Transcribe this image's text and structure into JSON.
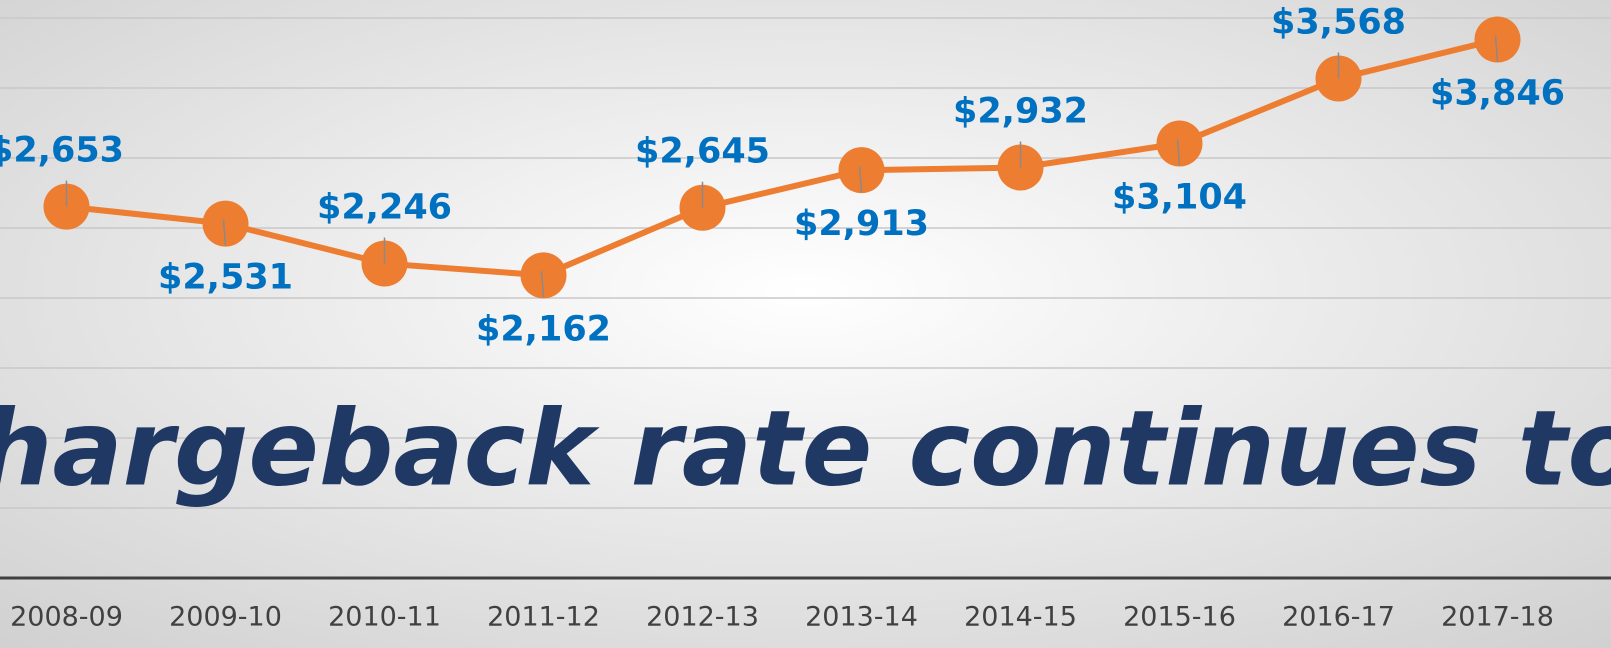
{
  "chart_data": {
    "type": "line",
    "annotation": "This chargeback rate continues to rise!",
    "categories": [
      "2008-09",
      "2009-10",
      "2010-11",
      "2011-12",
      "2012-13",
      "2013-14",
      "2014-15",
      "2015-16",
      "2016-17",
      "2017-18"
    ],
    "series": [
      {
        "color": "#ed7d31",
        "values": [
          2653,
          2531,
          2246,
          2162,
          2645,
          2913,
          2932,
          3104,
          3568,
          3846
        ],
        "value_labels": [
          "$2,653",
          "$2,531",
          "$2,246",
          "$2,162",
          "$2,645",
          "$2,913",
          "$2,932",
          "$3,104",
          "$3,568",
          "$3,846"
        ]
      }
    ],
    "ylim": [
      0,
      4000
    ],
    "yticks": [
      0,
      500,
      1000,
      1500,
      2000,
      2500,
      3000,
      3500,
      4000
    ],
    "grid": true
  }
}
